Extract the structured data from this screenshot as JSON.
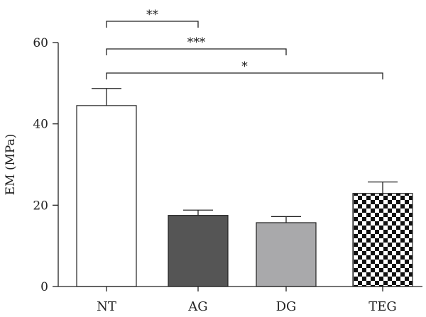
{
  "chart_data": {
    "type": "bar",
    "categories": [
      "NT",
      "AG",
      "DG",
      "TEG"
    ],
    "values": [
      44.5,
      17.5,
      15.7,
      22.9
    ],
    "error": [
      4.2,
      1.3,
      1.5,
      2.8
    ],
    "ylabel": "EM (MPa)",
    "ylim": [
      0,
      60
    ],
    "yticks": [
      0,
      20,
      40,
      60
    ],
    "grid": false,
    "bar_styles": [
      {
        "fill": "#ffffff",
        "pattern": "none"
      },
      {
        "fill": "#555555",
        "pattern": "none"
      },
      {
        "fill": "#a9a9ab",
        "pattern": "none"
      },
      {
        "fill": "#ffffff",
        "pattern": "checkerboard"
      }
    ],
    "significance": [
      {
        "from": "NT",
        "to": "AG",
        "label": "**"
      },
      {
        "from": "NT",
        "to": "DG",
        "label": "***"
      },
      {
        "from": "NT",
        "to": "TEG",
        "label": "*"
      }
    ]
  }
}
